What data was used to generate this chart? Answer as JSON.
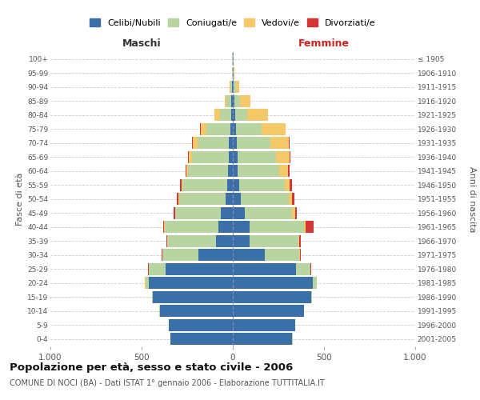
{
  "age_groups": [
    "0-4",
    "5-9",
    "10-14",
    "15-19",
    "20-24",
    "25-29",
    "30-34",
    "35-39",
    "40-44",
    "45-49",
    "50-54",
    "55-59",
    "60-64",
    "65-69",
    "70-74",
    "75-79",
    "80-84",
    "85-89",
    "90-94",
    "95-99",
    "100+"
  ],
  "birth_years": [
    "2001-2005",
    "1996-2000",
    "1991-1995",
    "1986-1990",
    "1981-1985",
    "1976-1980",
    "1971-1975",
    "1966-1970",
    "1961-1965",
    "1956-1960",
    "1951-1955",
    "1946-1950",
    "1941-1945",
    "1936-1940",
    "1931-1935",
    "1926-1930",
    "1921-1925",
    "1916-1920",
    "1911-1915",
    "1906-1910",
    "≤ 1905"
  ],
  "maschi": {
    "celibi": [
      340,
      350,
      400,
      440,
      460,
      370,
      190,
      90,
      80,
      65,
      40,
      30,
      25,
      22,
      20,
      15,
      10,
      8,
      5,
      2,
      2
    ],
    "coniugati": [
      2,
      2,
      2,
      5,
      20,
      90,
      195,
      270,
      295,
      250,
      255,
      245,
      220,
      200,
      175,
      130,
      60,
      25,
      10,
      3,
      2
    ],
    "vedovi": [
      0,
      0,
      0,
      0,
      1,
      1,
      1,
      1,
      2,
      2,
      3,
      5,
      10,
      20,
      25,
      30,
      30,
      12,
      3,
      1,
      0
    ],
    "divorziati": [
      0,
      0,
      0,
      0,
      1,
      2,
      3,
      5,
      5,
      8,
      8,
      8,
      5,
      5,
      3,
      3,
      2,
      0,
      0,
      0,
      0
    ]
  },
  "femmine": {
    "nubili": [
      325,
      340,
      390,
      430,
      440,
      345,
      175,
      90,
      90,
      65,
      45,
      35,
      28,
      25,
      22,
      18,
      12,
      10,
      5,
      2,
      2
    ],
    "coniugate": [
      2,
      2,
      2,
      5,
      20,
      80,
      190,
      270,
      300,
      260,
      260,
      248,
      225,
      210,
      185,
      140,
      65,
      30,
      12,
      3,
      2
    ],
    "vedove": [
      0,
      0,
      0,
      0,
      1,
      2,
      3,
      5,
      10,
      15,
      20,
      30,
      50,
      75,
      100,
      130,
      115,
      55,
      20,
      5,
      2
    ],
    "divorziate": [
      0,
      0,
      0,
      0,
      1,
      2,
      3,
      8,
      45,
      12,
      12,
      10,
      7,
      5,
      5,
      3,
      2,
      0,
      0,
      0,
      0
    ]
  },
  "colors": {
    "celibi_nubili": "#3a6fa8",
    "coniugati": "#b8d4a0",
    "vedovi": "#f5c96a",
    "divorziati": "#d43535"
  },
  "title": "Popolazione per età, sesso e stato civile - 2006",
  "subtitle": "COMUNE DI NOCI (BA) - Dati ISTAT 1° gennaio 2006 - Elaborazione TUTTITALIA.IT",
  "xlabel_left": "Maschi",
  "xlabel_right": "Femmine",
  "ylabel_left": "Fasce di età",
  "ylabel_right": "Anni di nascita",
  "xlim": 1000,
  "background_color": "#ffffff",
  "grid_color": "#cccccc"
}
